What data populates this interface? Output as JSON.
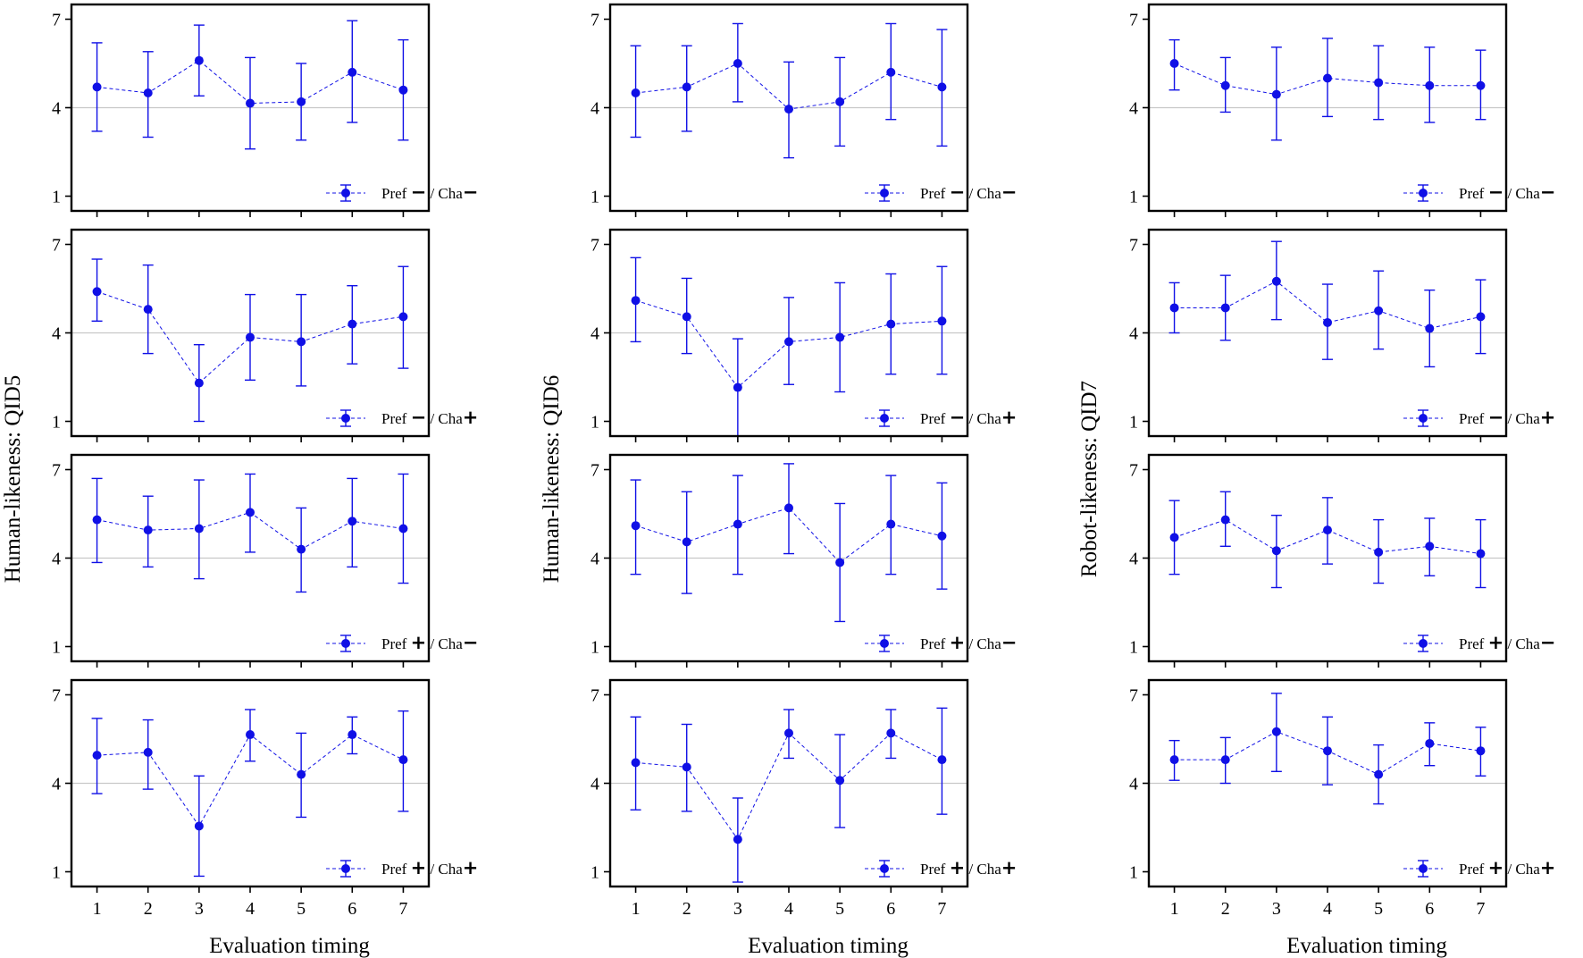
{
  "chart_data": {
    "type": "errorbar",
    "series_color": "#1010e6",
    "ref_line_color": "#c8c8c8",
    "ylim": [
      0.5,
      7.5
    ],
    "yticks": [
      "1",
      "4",
      "7"
    ],
    "xlim": [
      0.5,
      7.5
    ],
    "xticks": [
      "1",
      "2",
      "3",
      "4",
      "5",
      "6",
      "7"
    ],
    "xlabel": "Evaluation timing",
    "ylabels": [
      "Human-likeness: QID5",
      "Human-likeness: QID6",
      "Robot-likeness: QID7"
    ],
    "legend_text": {
      "pref": "Pref",
      "sep": " / Cha"
    },
    "panels": [
      {
        "condition": "Pref − / Cha −",
        "pref_sign": "−",
        "cha_sign": "−",
        "columns": [
          {
            "mean": [
              4.7,
              4.5,
              5.6,
              4.15,
              4.2,
              5.2,
              4.6
            ],
            "low": [
              3.2,
              3.0,
              4.4,
              2.6,
              2.9,
              3.5,
              2.9
            ],
            "high": [
              6.2,
              5.9,
              6.8,
              5.7,
              5.5,
              6.95,
              6.3
            ]
          },
          {
            "mean": [
              4.5,
              4.7,
              5.5,
              3.95,
              4.2,
              5.2,
              4.7
            ],
            "low": [
              3.0,
              3.2,
              4.2,
              2.3,
              2.7,
              3.6,
              2.7
            ],
            "high": [
              6.1,
              6.1,
              6.85,
              5.55,
              5.7,
              6.85,
              6.65
            ]
          },
          {
            "mean": [
              5.5,
              4.75,
              4.45,
              5.0,
              4.85,
              4.75,
              4.75
            ],
            "low": [
              4.6,
              3.85,
              2.9,
              3.7,
              3.6,
              3.5,
              3.6
            ],
            "high": [
              6.3,
              5.7,
              6.05,
              6.35,
              6.1,
              6.05,
              5.95
            ]
          }
        ]
      },
      {
        "condition": "Pref − / Cha +",
        "pref_sign": "−",
        "cha_sign": "+",
        "columns": [
          {
            "mean": [
              5.4,
              4.8,
              2.3,
              3.85,
              3.7,
              4.3,
              4.55
            ],
            "low": [
              4.4,
              3.3,
              1.0,
              2.4,
              2.2,
              2.95,
              2.8
            ],
            "high": [
              6.5,
              6.3,
              3.6,
              5.3,
              5.3,
              5.6,
              6.25
            ]
          },
          {
            "mean": [
              5.1,
              4.55,
              2.15,
              3.7,
              3.85,
              4.3,
              4.4
            ],
            "low": [
              3.7,
              3.3,
              0.5,
              2.25,
              2.0,
              2.6,
              2.6
            ],
            "high": [
              6.55,
              5.85,
              3.8,
              5.2,
              5.7,
              6.0,
              6.25
            ]
          },
          {
            "mean": [
              4.85,
              4.85,
              5.75,
              4.35,
              4.75,
              4.15,
              4.55
            ],
            "low": [
              4.0,
              3.75,
              4.45,
              3.1,
              3.45,
              2.85,
              3.3
            ],
            "high": [
              5.7,
              5.95,
              7.1,
              5.65,
              6.1,
              5.45,
              5.8
            ]
          }
        ]
      },
      {
        "condition": "Pref + / Cha −",
        "pref_sign": "+",
        "cha_sign": "−",
        "columns": [
          {
            "mean": [
              5.3,
              4.95,
              5.0,
              5.55,
              4.3,
              5.25,
              5.0
            ],
            "low": [
              3.85,
              3.7,
              3.3,
              4.2,
              2.85,
              3.7,
              3.15
            ],
            "high": [
              6.7,
              6.1,
              6.65,
              6.85,
              5.7,
              6.7,
              6.85
            ]
          },
          {
            "mean": [
              5.1,
              4.55,
              5.15,
              5.7,
              3.85,
              5.15,
              4.75
            ],
            "low": [
              3.45,
              2.8,
              3.45,
              4.15,
              1.85,
              3.45,
              2.95
            ],
            "high": [
              6.65,
              6.25,
              6.8,
              7.2,
              5.85,
              6.8,
              6.55
            ]
          },
          {
            "mean": [
              4.7,
              5.3,
              4.25,
              4.95,
              4.2,
              4.4,
              4.15
            ],
            "low": [
              3.45,
              4.4,
              3.0,
              3.8,
              3.15,
              3.4,
              3.0
            ],
            "high": [
              5.95,
              6.25,
              5.45,
              6.05,
              5.3,
              5.35,
              5.3
            ]
          }
        ]
      },
      {
        "condition": "Pref + / Cha +",
        "pref_sign": "+",
        "cha_sign": "+",
        "columns": [
          {
            "mean": [
              4.95,
              5.05,
              2.55,
              5.65,
              4.3,
              5.65,
              4.8
            ],
            "low": [
              3.65,
              3.8,
              0.85,
              4.75,
              2.85,
              5.0,
              3.05
            ],
            "high": [
              6.2,
              6.15,
              4.25,
              6.5,
              5.7,
              6.25,
              6.45
            ]
          },
          {
            "mean": [
              4.7,
              4.55,
              2.1,
              5.7,
              4.1,
              5.7,
              4.8
            ],
            "low": [
              3.1,
              3.05,
              0.65,
              4.85,
              2.5,
              4.85,
              2.95
            ],
            "high": [
              6.25,
              6.0,
              3.5,
              6.5,
              5.65,
              6.5,
              6.55
            ]
          },
          {
            "mean": [
              4.8,
              4.8,
              5.75,
              5.1,
              4.3,
              5.35,
              5.1
            ],
            "low": [
              4.1,
              4.0,
              4.4,
              3.95,
              3.3,
              4.6,
              4.25
            ],
            "high": [
              5.45,
              5.55,
              7.05,
              6.25,
              5.3,
              6.05,
              5.9
            ]
          }
        ]
      }
    ]
  }
}
